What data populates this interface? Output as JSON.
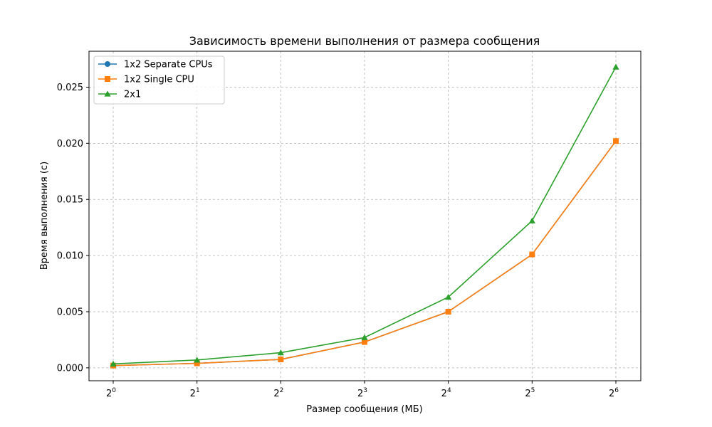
{
  "chart_data": {
    "type": "line",
    "title": "Зависимость времени выполнения от размера сообщения",
    "xlabel": "Размер сообщения (МБ)",
    "ylabel": "Время выполнения (с)",
    "x_scale": "log2",
    "x": [
      1,
      2,
      4,
      8,
      16,
      32,
      64
    ],
    "x_tick_labels": [
      {
        "base": "2",
        "exp": "0"
      },
      {
        "base": "2",
        "exp": "1"
      },
      {
        "base": "2",
        "exp": "2"
      },
      {
        "base": "2",
        "exp": "3"
      },
      {
        "base": "2",
        "exp": "4"
      },
      {
        "base": "2",
        "exp": "5"
      },
      {
        "base": "2",
        "exp": "6"
      }
    ],
    "y_ticks": [
      0.0,
      0.005,
      0.01,
      0.015,
      0.02,
      0.025
    ],
    "y_tick_labels": [
      "0.000",
      "0.005",
      "0.010",
      "0.015",
      "0.020",
      "0.025"
    ],
    "ylim": [
      -0.00115,
      0.0282
    ],
    "grid": true,
    "legend_position": "top-left",
    "series": [
      {
        "name": "1x2 Separate CPUs",
        "marker": "circle",
        "color": "#1f77b4",
        "values": [
          0.0002,
          0.0004,
          0.00075,
          0.0023,
          0.005,
          0.0101,
          0.0202
        ]
      },
      {
        "name": "1x2 Single CPU",
        "marker": "square",
        "color": "#ff7f0e",
        "values": [
          0.0002,
          0.0004,
          0.00075,
          0.0023,
          0.005,
          0.0101,
          0.0202
        ]
      },
      {
        "name": "2x1",
        "marker": "triangle",
        "color": "#2ca02c",
        "values": [
          0.00035,
          0.0007,
          0.00135,
          0.0027,
          0.0063,
          0.0131,
          0.0268
        ]
      }
    ]
  }
}
